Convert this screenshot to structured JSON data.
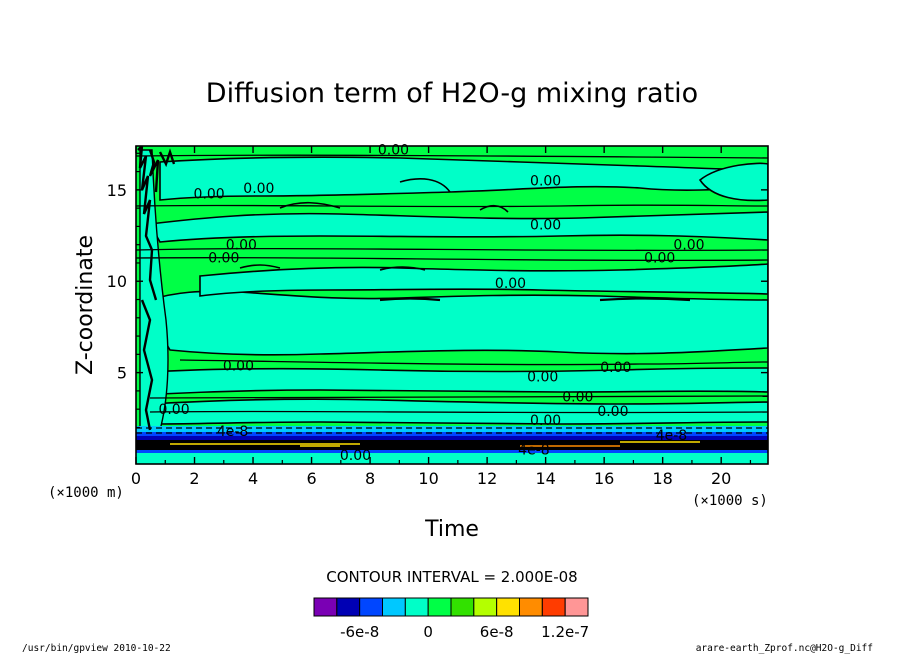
{
  "chart_data": {
    "type": "heatmap",
    "title": "Diffusion term of H2O-g mixing ratio",
    "xlabel": "Time",
    "ylabel": "Z-coordinate",
    "x_unit": "(×1000 s)",
    "y_unit": "(×1000 m)",
    "xlim": [
      0,
      21.6
    ],
    "ylim": [
      0,
      17.4
    ],
    "x_ticks": [
      "0",
      "2",
      "4",
      "6",
      "8",
      "10",
      "12",
      "14",
      "16",
      "18",
      "20"
    ],
    "y_ticks": [
      "5",
      "10",
      "15"
    ],
    "contour_interval_text": "CONTOUR INTERVAL = 2.000E-08",
    "contour_labels": [
      {
        "text": "0.00",
        "x": 8.8,
        "y": 17.2
      },
      {
        "text": "0.00",
        "x": 14.0,
        "y": 15.5
      },
      {
        "text": "0.00",
        "x": 2.5,
        "y": 14.8
      },
      {
        "text": "0.00",
        "x": 4.2,
        "y": 15.1
      },
      {
        "text": "0.00",
        "x": 14.0,
        "y": 13.1
      },
      {
        "text": "0.00",
        "x": 3.6,
        "y": 12.0
      },
      {
        "text": "0.00",
        "x": 3.0,
        "y": 11.3
      },
      {
        "text": "0.00",
        "x": 18.9,
        "y": 12.0
      },
      {
        "text": "0.00",
        "x": 17.9,
        "y": 11.3
      },
      {
        "text": "0.00",
        "x": 12.8,
        "y": 9.9
      },
      {
        "text": "0.00",
        "x": 3.5,
        "y": 5.4
      },
      {
        "text": "0.00",
        "x": 13.9,
        "y": 4.8
      },
      {
        "text": "0.00",
        "x": 16.4,
        "y": 5.3
      },
      {
        "text": "0.00",
        "x": 15.1,
        "y": 3.7
      },
      {
        "text": "0.00",
        "x": 16.3,
        "y": 2.9
      },
      {
        "text": "0.00",
        "x": 14.0,
        "y": 2.4
      },
      {
        "text": "0.00",
        "x": 1.3,
        "y": 3.0
      },
      {
        "text": "0.00",
        "x": 7.5,
        "y": 0.5
      },
      {
        "text": "4e-8",
        "x": 18.3,
        "y": 1.6
      },
      {
        "text": "4e-8",
        "x": 3.3,
        "y": 1.8
      },
      {
        "text": "4e-8",
        "x": 13.6,
        "y": 0.8
      }
    ],
    "color_levels": [
      {
        "color": "#7a00b4"
      },
      {
        "color": "#0000b4"
      },
      {
        "color": "#0046ff"
      },
      {
        "color": "#00c8ff"
      },
      {
        "color": "#00ffc8"
      },
      {
        "color": "#00ff46"
      },
      {
        "color": "#32e100"
      },
      {
        "color": "#b4ff00"
      },
      {
        "color": "#ffe100"
      },
      {
        "color": "#ff8c00"
      },
      {
        "color": "#ff3c00"
      },
      {
        "color": "#ff9696"
      }
    ],
    "colorbar_labels": [
      "-6e-8",
      "0",
      "6e-8",
      "1.2e-7"
    ]
  },
  "footer": {
    "left": "/usr/bin/gpview  2010-10-22",
    "right": "arare-earth_Zprof.nc@H2O-g_Diff"
  }
}
